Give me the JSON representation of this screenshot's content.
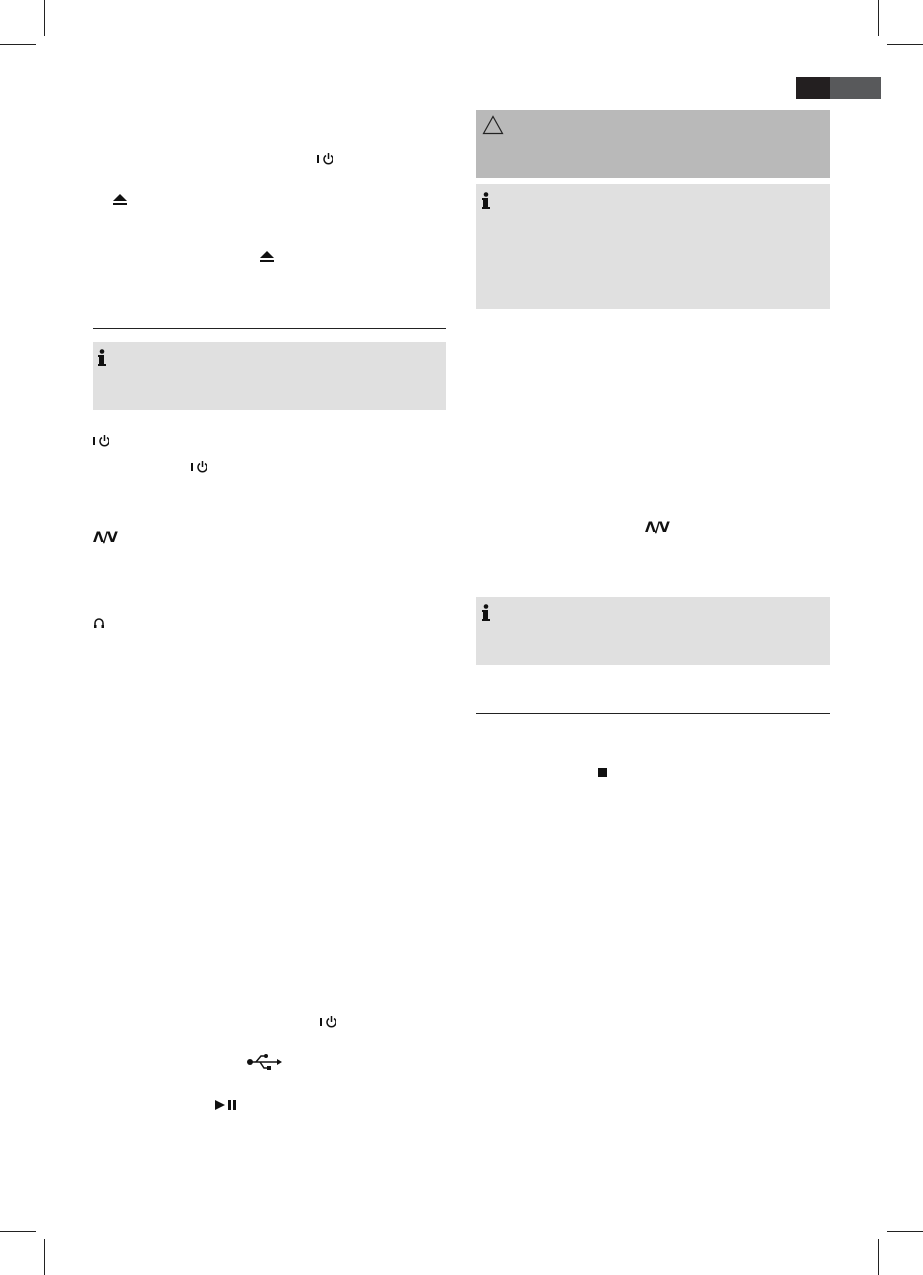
{
  "header": {
    "tab_dark_color": "#231f20",
    "tab_gray_color": "#58595b"
  },
  "colors": {
    "warning_box": "#b9b9b9",
    "info_box": "#e0e0e0",
    "rule": "#222222"
  },
  "symbols": {
    "up_down_left": "Λ/V",
    "up_down_right": "Λ/V"
  },
  "icons": [
    "power-icon",
    "eject-icon",
    "info-icon",
    "warning-icon",
    "headphone-icon",
    "usb-icon",
    "play-pause-icon",
    "stop-icon"
  ]
}
